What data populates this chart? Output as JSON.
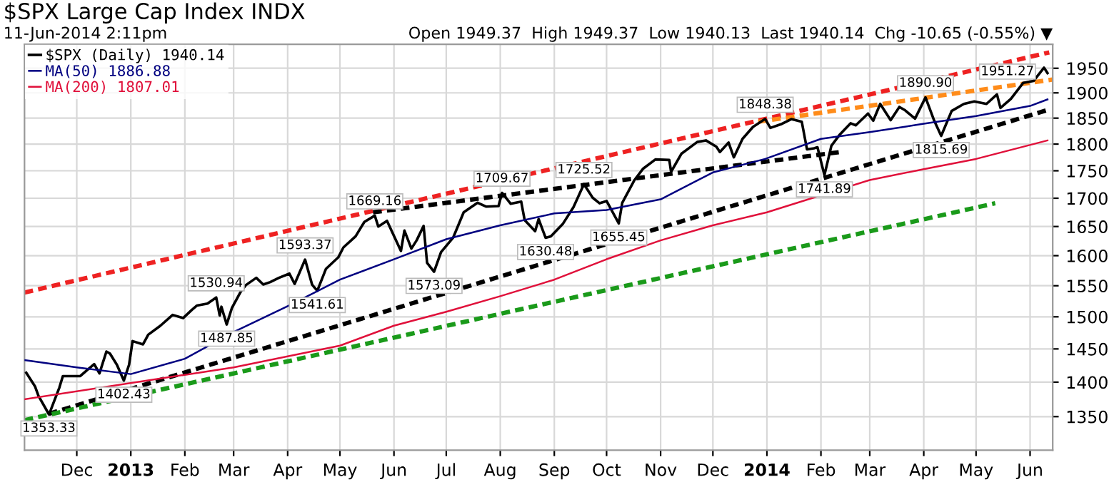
{
  "chart_data": {
    "type": "line",
    "title": "$SPX Large Cap Index INDX",
    "subtitle": "11-Jun-2014 2:11pm",
    "log": true,
    "grid": true,
    "legend": "top left",
    "marker": "none",
    "xlim": [
      "2012-11-01",
      "2014-06-14"
    ],
    "xticks": [
      {
        "value": "2012-12-01",
        "label": "Dec"
      },
      {
        "value": "2013-01-01",
        "label": "2013"
      },
      {
        "value": "2013-02-01",
        "label": "Feb"
      },
      {
        "value": "2013-03-01",
        "label": "Mar"
      },
      {
        "value": "2013-04-01",
        "label": "Apr"
      },
      {
        "value": "2013-05-01",
        "label": "May"
      },
      {
        "value": "2013-06-01",
        "label": "Jun"
      },
      {
        "value": "2013-07-01",
        "label": "Jul"
      },
      {
        "value": "2013-08-01",
        "label": "Aug"
      },
      {
        "value": "2013-09-01",
        "label": "Sep"
      },
      {
        "value": "2013-10-01",
        "label": "Oct"
      },
      {
        "value": "2013-11-01",
        "label": "Nov"
      },
      {
        "value": "2013-12-01",
        "label": "Dec"
      },
      {
        "value": "2014-01-01",
        "label": "2014"
      },
      {
        "value": "2014-02-01",
        "label": "Feb"
      },
      {
        "value": "2014-03-01",
        "label": "Mar"
      },
      {
        "value": "2014-04-01",
        "label": "Apr"
      },
      {
        "value": "2014-05-01",
        "label": "May"
      },
      {
        "value": "2014-06-01",
        "label": "Jun"
      }
    ],
    "ylim": [
      1303,
      2000
    ],
    "yticks": [
      1350,
      1400,
      1450,
      1500,
      1550,
      1600,
      1650,
      1700,
      1750,
      1800,
      1850,
      1900,
      1950
    ],
    "series": [
      {
        "name": "$SPX (Daily) 1940.14",
        "color": "#000000",
        "line_style": "solid",
        "x": [
          "2012-11-02",
          "2012-11-07",
          "2012-11-09",
          "2012-11-15",
          "2012-11-16",
          "2012-11-21",
          "2012-11-23",
          "2012-11-28",
          "2012-12-03",
          "2012-12-07",
          "2012-12-11",
          "2012-12-14",
          "2012-12-18",
          "2012-12-20",
          "2012-12-24",
          "2012-12-28",
          "2012-12-31",
          "2013-01-02",
          "2013-01-08",
          "2013-01-11",
          "2013-01-18",
          "2013-01-25",
          "2013-01-31",
          "2013-02-05",
          "2013-02-08",
          "2013-02-14",
          "2013-02-19",
          "2013-02-21",
          "2013-02-22",
          "2013-02-25",
          "2013-02-28",
          "2013-03-05",
          "2013-03-08",
          "2013-03-14",
          "2013-03-18",
          "2013-03-22",
          "2013-03-27",
          "2013-04-02",
          "2013-04-05",
          "2013-04-11",
          "2013-04-15",
          "2013-04-18",
          "2013-04-23",
          "2013-04-30",
          "2013-05-03",
          "2013-05-10",
          "2013-05-15",
          "2013-05-21",
          "2013-05-23",
          "2013-05-28",
          "2013-06-05",
          "2013-06-07",
          "2013-06-11",
          "2013-06-14",
          "2013-06-18",
          "2013-06-20",
          "2013-06-24",
          "2013-06-28",
          "2013-07-05",
          "2013-07-11",
          "2013-07-19",
          "2013-07-24",
          "2013-07-31",
          "2013-08-02",
          "2013-08-07",
          "2013-08-13",
          "2013-08-15",
          "2013-08-21",
          "2013-08-23",
          "2013-08-27",
          "2013-08-30",
          "2013-09-06",
          "2013-09-12",
          "2013-09-18",
          "2013-09-23",
          "2013-09-27",
          "2013-10-01",
          "2013-10-08",
          "2013-10-10",
          "2013-10-17",
          "2013-10-22",
          "2013-10-29",
          "2013-11-06",
          "2013-11-07",
          "2013-11-13",
          "2013-11-22",
          "2013-11-27",
          "2013-12-03",
          "2013-12-05",
          "2013-12-10",
          "2013-12-13",
          "2013-12-18",
          "2013-12-24",
          "2013-12-31",
          "2014-01-03",
          "2014-01-09",
          "2014-01-15",
          "2014-01-21",
          "2014-01-24",
          "2014-01-28",
          "2014-01-30",
          "2014-02-03",
          "2014-02-07",
          "2014-02-12",
          "2014-02-18",
          "2014-02-21",
          "2014-02-28",
          "2014-03-03",
          "2014-03-07",
          "2014-03-13",
          "2014-03-18",
          "2014-03-21",
          "2014-03-27",
          "2014-04-02",
          "2014-04-07",
          "2014-04-11",
          "2014-04-17",
          "2014-04-24",
          "2014-04-30",
          "2014-05-07",
          "2014-05-13",
          "2014-05-15",
          "2014-05-21",
          "2014-05-28",
          "2014-06-03",
          "2014-06-09",
          "2014-06-11"
        ],
        "values": [
          1414,
          1394,
          1380,
          1353.33,
          1359,
          1392,
          1409,
          1409,
          1409,
          1418,
          1427,
          1413,
          1446,
          1443,
          1426,
          1402.43,
          1426,
          1462,
          1457,
          1472,
          1486,
          1503,
          1498,
          1511,
          1518,
          1521,
          1530.94,
          1502,
          1516,
          1487.85,
          1514,
          1540,
          1551,
          1563,
          1552,
          1556,
          1563,
          1570,
          1553,
          1593.37,
          1552,
          1541.61,
          1578,
          1597,
          1614,
          1633,
          1658,
          1669.16,
          1650,
          1660,
          1608,
          1643,
          1612,
          1626,
          1651,
          1588,
          1573.09,
          1606,
          1631,
          1675,
          1692,
          1685,
          1686,
          1709.67,
          1690,
          1694,
          1661,
          1642,
          1663,
          1630.48,
          1633,
          1655,
          1684,
          1725.52,
          1701,
          1691,
          1695,
          1655.45,
          1692,
          1733,
          1754,
          1771,
          1770,
          1748,
          1782,
          1804,
          1807,
          1795,
          1785,
          1803,
          1775,
          1810,
          1833,
          1848.38,
          1831,
          1838,
          1848,
          1843,
          1790,
          1792,
          1794,
          1741.89,
          1797,
          1819,
          1840,
          1836,
          1859,
          1845,
          1878,
          1846,
          1872,
          1866,
          1849,
          1890.9,
          1845,
          1815.69,
          1864,
          1878,
          1883,
          1878,
          1897,
          1870,
          1888,
          1920,
          1924,
          1951.27,
          1940.14
        ]
      },
      {
        "name": "MA(50) 1886.88",
        "color": "#000080",
        "line_style": "solid",
        "x": [
          "2012-11-01",
          "2012-12-01",
          "2013-01-01",
          "2013-02-01",
          "2013-03-01",
          "2013-04-01",
          "2013-04-18",
          "2013-05-01",
          "2013-06-01",
          "2013-07-01",
          "2013-08-01",
          "2013-09-01",
          "2013-10-01",
          "2013-11-01",
          "2013-12-01",
          "2013-12-31",
          "2014-02-01",
          "2014-03-01",
          "2014-04-01",
          "2014-05-01",
          "2014-06-01",
          "2014-06-11"
        ],
        "values": [
          1433,
          1422,
          1412,
          1435,
          1476,
          1517,
          1541,
          1560,
          1594,
          1628,
          1652,
          1673,
          1679,
          1698,
          1747,
          1772,
          1810,
          1823,
          1839,
          1854,
          1874,
          1886.88
        ]
      },
      {
        "name": "MA(200) 1807.01",
        "color": "#e0103a",
        "line_style": "solid",
        "x": [
          "2012-11-01",
          "2013-03-01",
          "2013-05-01",
          "2013-06-01",
          "2013-07-01",
          "2013-08-01",
          "2013-09-01",
          "2013-10-01",
          "2013-11-01",
          "2013-12-01",
          "2014-01-01",
          "2014-03-01",
          "2014-04-01",
          "2014-05-01",
          "2014-06-11"
        ],
        "values": [
          1375,
          1422,
          1455,
          1486,
          1508,
          1533,
          1560,
          1594,
          1626,
          1652,
          1675,
          1733,
          1753,
          1772,
          1807.01
        ]
      },
      {
        "color": "#ee2222",
        "line_style": "dashed",
        "x": [
          "2012-11-01",
          "2014-06-12"
        ],
        "values": [
          1539,
          1983
        ]
      },
      {
        "color": "#ff8c1a",
        "line_style": "dashed",
        "x": [
          "2013-12-27",
          "2014-06-14"
        ],
        "values": [
          1843,
          1927
        ]
      },
      {
        "color": "#000000",
        "line_style": "dashed",
        "x": [
          "2013-05-20",
          "2014-02-12"
        ],
        "values": [
          1675,
          1785
        ]
      },
      {
        "color": "#000000",
        "line_style": "dashed",
        "x": [
          "2012-11-15",
          "2014-06-12"
        ],
        "values": [
          1354,
          1867
        ]
      },
      {
        "color": "#1a9a1a",
        "line_style": "dashed",
        "x": [
          "2012-11-01",
          "2014-05-12"
        ],
        "values": [
          1345,
          1691
        ]
      }
    ],
    "annotations": [
      "Open 1949.37  High 1949.37  Low 1940.13  Last 1940.14  Chg -10.65 (-0.55%) ▼",
      {
        "text": "1353.33",
        "x": "2012-11-15",
        "y": 1353.33
      },
      {
        "text": "1402.43",
        "x": "2012-12-28",
        "y": 1402.43
      },
      {
        "text": "1530.94",
        "x": "2013-02-19",
        "y": 1530.94
      },
      {
        "text": "1487.85",
        "x": "2013-02-25",
        "y": 1487.85
      },
      {
        "text": "1593.37",
        "x": "2013-04-11",
        "y": 1593.37
      },
      {
        "text": "1541.61",
        "x": "2013-04-18",
        "y": 1541.61
      },
      {
        "text": "1669.16",
        "x": "2013-05-21",
        "y": 1669.16
      },
      {
        "text": "1573.09",
        "x": "2013-06-24",
        "y": 1573.09
      },
      {
        "text": "1709.67",
        "x": "2013-08-02",
        "y": 1709.67
      },
      {
        "text": "1630.48",
        "x": "2013-08-27",
        "y": 1630.48
      },
      {
        "text": "1725.52",
        "x": "2013-09-18",
        "y": 1725.52
      },
      {
        "text": "1655.45",
        "x": "2013-10-08",
        "y": 1655.45
      },
      {
        "text": "1848.38",
        "x": "2013-12-31",
        "y": 1848.38
      },
      {
        "text": "1741.89",
        "x": "2014-02-03",
        "y": 1741.89
      },
      {
        "text": "1890.90",
        "x": "2014-04-02",
        "y": 1890.9
      },
      {
        "text": "1815.69",
        "x": "2014-04-11",
        "y": 1815.69
      },
      {
        "text": "1951.27",
        "x": "2014-06-09",
        "y": 1951.27
      }
    ]
  }
}
